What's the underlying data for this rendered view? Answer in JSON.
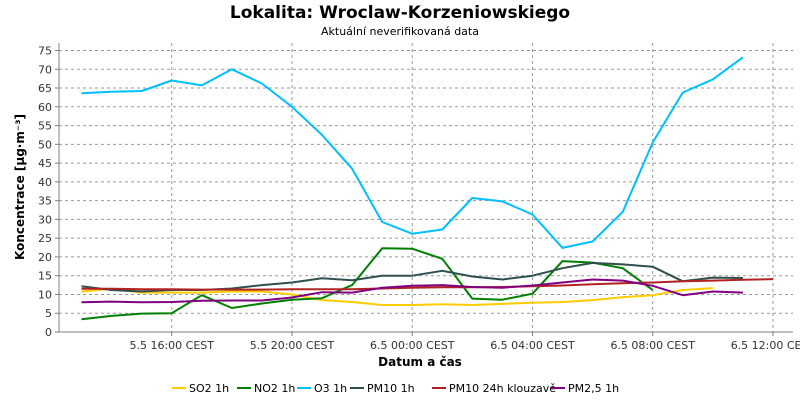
{
  "chart_data": {
    "type": "line",
    "title": "Lokalita: Wroclaw-Korzeniowskiego",
    "subtitle": "Aktuální neverifikovaná data",
    "xlabel": "Datum a čas",
    "ylabel": "Koncentrace [µg·m⁻³]",
    "ylim": [
      0,
      77
    ],
    "yticks": [
      0,
      5,
      10,
      15,
      20,
      25,
      30,
      35,
      40,
      45,
      50,
      55,
      60,
      65,
      70,
      75
    ],
    "xlim": [
      "2024-05-05 12:15",
      "2024-05-06 12:40"
    ],
    "x_ticks": [
      {
        "x": "2024-05-05 16:00",
        "label": "5.5 16:00 CEST"
      },
      {
        "x": "2024-05-05 20:00",
        "label": "5.5 20:00 CEST"
      },
      {
        "x": "2024-05-06 00:00",
        "label": "6.5 00:00 CEST"
      },
      {
        "x": "2024-05-06 04:00",
        "label": "6.5 04:00 CEST"
      },
      {
        "x": "2024-05-06 08:00",
        "label": "6.5 08:00 CEST"
      },
      {
        "x": "2024-05-06 12:00",
        "label": "6.5 12:00 CEST"
      }
    ],
    "grid": true,
    "legend_position": "bottom",
    "x": [
      "2024-05-05 13:00",
      "2024-05-05 14:00",
      "2024-05-05 15:00",
      "2024-05-05 16:00",
      "2024-05-05 17:00",
      "2024-05-05 18:00",
      "2024-05-05 19:00",
      "2024-05-05 20:00",
      "2024-05-05 21:00",
      "2024-05-05 22:00",
      "2024-05-05 23:00",
      "2024-05-06 00:00",
      "2024-05-06 01:00",
      "2024-05-06 02:00",
      "2024-05-06 03:00",
      "2024-05-06 04:00",
      "2024-05-06 05:00",
      "2024-05-06 06:00",
      "2024-05-06 07:00",
      "2024-05-06 08:00",
      "2024-05-06 09:00",
      "2024-05-06 10:00",
      "2024-05-06 11:00",
      "2024-05-06 12:00"
    ],
    "series": [
      {
        "name": "SO2 1h",
        "color": "#ffcc00",
        "values": [
          10.8,
          11.5,
          10.5,
          10.5,
          10.5,
          10.8,
          10.8,
          10.0,
          8.5,
          8.0,
          7.2,
          7.2,
          7.4,
          7.2,
          7.5,
          7.8,
          8.0,
          8.5,
          9.3,
          9.8,
          11.2,
          11.7,
          null,
          null
        ]
      },
      {
        "name": "NO2 1h",
        "color": "#008000",
        "values": [
          3.4,
          4.3,
          4.9,
          5.0,
          9.8,
          6.4,
          7.6,
          8.6,
          9.0,
          12.5,
          22.3,
          22.2,
          19.5,
          8.9,
          8.6,
          10.2,
          18.9,
          18.5,
          17.0,
          11.2,
          null,
          null,
          null,
          null
        ]
      },
      {
        "name": "O3 1h",
        "color": "#00bfff",
        "values": [
          63.6,
          64.0,
          64.2,
          67.0,
          65.7,
          70.0,
          66.2,
          60.0,
          52.5,
          43.5,
          29.3,
          26.2,
          27.3,
          35.7,
          34.8,
          31.3,
          22.4,
          24.1,
          32.0,
          50.5,
          63.8,
          67.3,
          73.2,
          null
        ]
      },
      {
        "name": "PM10 1h",
        "color": "#2f4f4f",
        "values": [
          12.2,
          11.2,
          10.8,
          11.2,
          11.2,
          11.6,
          12.5,
          13.2,
          14.3,
          13.8,
          15.0,
          15.0,
          16.3,
          14.8,
          14.0,
          15.0,
          17.0,
          18.4,
          18.0,
          17.4,
          13.5,
          14.5,
          14.4,
          null
        ]
      },
      {
        "name": "PM10 24h klouzavě",
        "color": "#b22222",
        "values": [
          11.5,
          11.5,
          11.4,
          11.4,
          11.3,
          11.3,
          11.3,
          11.4,
          11.4,
          11.4,
          11.6,
          11.8,
          11.9,
          11.9,
          12.0,
          12.2,
          12.4,
          12.7,
          13.0,
          13.2,
          13.5,
          13.7,
          13.9,
          14.1
        ]
      },
      {
        "name": "PM2,5 1h",
        "color": "#800080",
        "values": [
          7.9,
          8.1,
          7.9,
          8.0,
          8.3,
          8.4,
          8.4,
          9.2,
          10.6,
          10.5,
          11.8,
          12.3,
          12.5,
          12.0,
          11.8,
          12.4,
          13.2,
          14.0,
          13.7,
          12.3,
          9.8,
          10.8,
          10.5,
          null
        ]
      }
    ]
  }
}
